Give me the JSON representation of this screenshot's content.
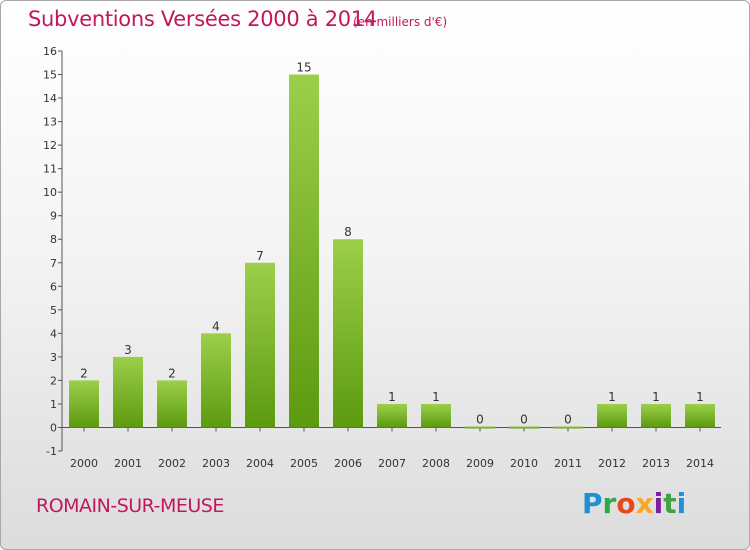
{
  "header": {
    "title": "Subventions Versées 2000 à 2014",
    "unit": "(en milliers d'€)"
  },
  "footer": {
    "commune": "ROMAIN-SUR-MEUSE",
    "logo_text": "Proxiti"
  },
  "colors": {
    "title": "#c2185b",
    "bar_light": "#9ccf4a",
    "bar_dark": "#5c9a10",
    "axis": "#555555"
  },
  "chart_data": {
    "type": "bar",
    "title": "Subventions Versées 2000 à 2014",
    "subtitle": "(en milliers d'€)",
    "categories": [
      "2000",
      "2001",
      "2002",
      "2003",
      "2004",
      "2005",
      "2006",
      "2007",
      "2008",
      "2009",
      "2010",
      "2011",
      "2012",
      "2013",
      "2014"
    ],
    "values": [
      2,
      3,
      2,
      4,
      7,
      15,
      8,
      1,
      1,
      0,
      0,
      0,
      1,
      1,
      1
    ],
    "ylim": [
      -1,
      16
    ],
    "yticks": [
      -1,
      0,
      1,
      2,
      3,
      4,
      5,
      6,
      7,
      8,
      9,
      10,
      11,
      12,
      13,
      14,
      15,
      16
    ],
    "xlabel": "",
    "ylabel": "",
    "grid": false,
    "legend": "none"
  }
}
